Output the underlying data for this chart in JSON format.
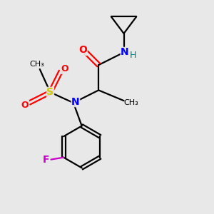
{
  "background_color": "#e8e8e8",
  "bond_color": "#000000",
  "colors": {
    "O": "#ff0000",
    "N": "#0000ff",
    "S": "#cccc00",
    "F": "#cc00cc",
    "H": "#008080",
    "C": "#000000"
  },
  "figsize": [
    3.0,
    3.0
  ],
  "dpi": 100
}
